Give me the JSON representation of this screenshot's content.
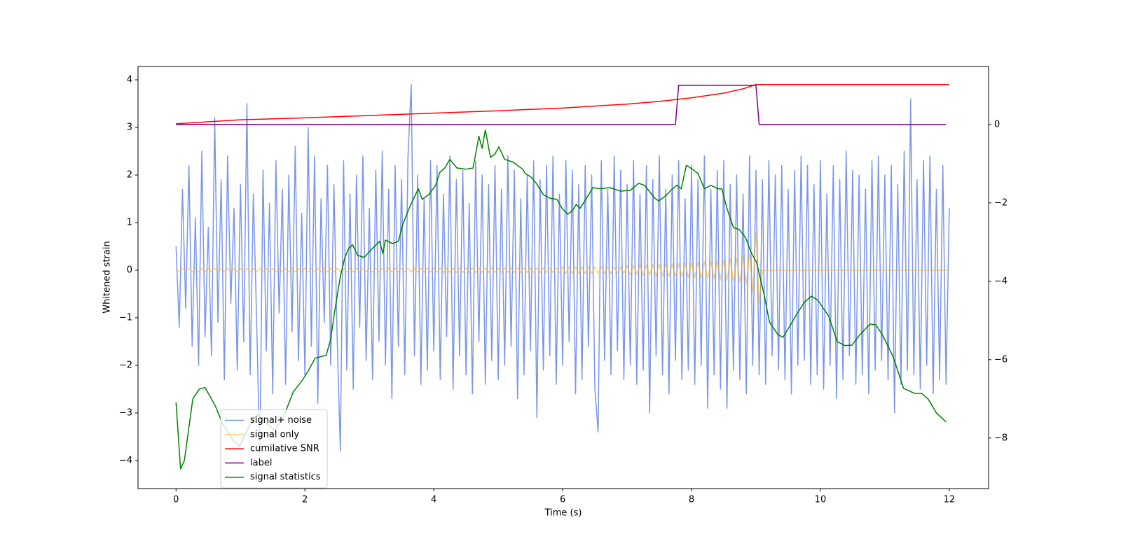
{
  "chart_data": {
    "type": "line",
    "xlabel": "Time (s)",
    "ylabel": "Whitened strain",
    "xlim": [
      -0.59,
      12.61
    ],
    "ylim": [
      -4.59,
      4.28
    ],
    "y2lim": [
      -9.29,
      1.48
    ],
    "xticks": [
      0,
      2,
      4,
      6,
      8,
      10,
      12
    ],
    "yticks": [
      {
        "value": -4,
        "label": "−4"
      },
      {
        "value": -3,
        "label": "−3"
      },
      {
        "value": -2,
        "label": "−2"
      },
      {
        "value": -1,
        "label": "−1"
      },
      0,
      1,
      2,
      3,
      4
    ],
    "y2ticks": [
      {
        "value": -8,
        "label": "−8"
      },
      {
        "value": -6,
        "label": "−6"
      },
      {
        "value": -4,
        "label": "−4"
      },
      {
        "value": -2,
        "label": "−2"
      },
      0
    ],
    "legend": "lower left",
    "x": [
      0,
      0.05,
      0.1,
      0.15,
      0.2,
      0.25,
      0.3,
      0.35,
      0.4,
      0.45,
      0.5,
      0.55,
      0.6,
      0.65,
      0.7,
      0.75,
      0.8,
      0.85,
      0.9,
      0.95,
      1,
      1.05,
      1.1,
      1.15,
      1.2,
      1.25,
      1.3,
      1.35,
      1.4,
      1.45,
      1.5,
      1.55,
      1.6,
      1.65,
      1.7,
      1.75,
      1.8,
      1.85,
      1.9,
      1.95,
      2,
      2.05,
      2.1,
      2.15,
      2.2,
      2.25,
      2.3,
      2.35,
      2.4,
      2.45,
      2.5,
      2.55,
      2.6,
      2.65,
      2.7,
      2.75,
      2.8,
      2.85,
      2.9,
      2.95,
      3,
      3.05,
      3.1,
      3.15,
      3.2,
      3.25,
      3.3,
      3.35,
      3.4,
      3.45,
      3.5,
      3.55,
      3.6,
      3.65,
      3.7,
      3.75,
      3.8,
      3.85,
      3.9,
      3.95,
      4,
      4.05,
      4.1,
      4.15,
      4.2,
      4.25,
      4.3,
      4.35,
      4.4,
      4.45,
      4.5,
      4.55,
      4.6,
      4.65,
      4.7,
      4.75,
      4.8,
      4.85,
      4.9,
      4.95,
      5,
      5.05,
      5.1,
      5.15,
      5.2,
      5.25,
      5.3,
      5.35,
      5.4,
      5.45,
      5.5,
      5.55,
      5.6,
      5.65,
      5.7,
      5.75,
      5.8,
      5.85,
      5.9,
      5.95,
      6,
      6.05,
      6.1,
      6.15,
      6.2,
      6.25,
      6.3,
      6.35,
      6.4,
      6.45,
      6.5,
      6.55,
      6.6,
      6.65,
      6.7,
      6.75,
      6.8,
      6.85,
      6.9,
      6.95,
      7,
      7.05,
      7.1,
      7.15,
      7.2,
      7.25,
      7.3,
      7.35,
      7.4,
      7.45,
      7.5,
      7.55,
      7.6,
      7.65,
      7.7,
      7.75,
      7.8,
      7.85,
      7.9,
      7.95,
      8,
      8.05,
      8.1,
      8.15,
      8.2,
      8.25,
      8.3,
      8.35,
      8.4,
      8.45,
      8.5,
      8.55,
      8.6,
      8.65,
      8.7,
      8.75,
      8.8,
      8.85,
      8.9,
      8.95,
      9,
      9.05,
      9.1,
      9.15,
      9.2,
      9.25,
      9.3,
      9.35,
      9.4,
      9.45,
      9.5,
      9.55,
      9.6,
      9.65,
      9.7,
      9.75,
      9.8,
      9.85,
      9.9,
      9.95,
      10,
      10.05,
      10.1,
      10.15,
      10.2,
      10.25,
      10.3,
      10.35,
      10.4,
      10.45,
      10.5,
      10.55,
      10.6,
      10.65,
      10.7,
      10.75,
      10.8,
      10.85,
      10.9,
      10.95,
      11,
      11.05,
      11.1,
      11.15,
      11.2,
      11.25,
      11.3,
      11.35,
      11.4,
      11.45,
      11.5,
      11.55,
      11.6,
      11.65,
      11.7,
      11.75,
      11.8,
      11.85,
      11.9,
      11.95,
      12
    ],
    "series": [
      {
        "name": "signal+ noise",
        "color": "#4169e1",
        "values": [
          0.5,
          -1.2,
          1.7,
          -0.8,
          2.2,
          -1.6,
          1.1,
          -2.0,
          2.5,
          -1.4,
          0.9,
          -1.8,
          3.2,
          -1.1,
          1.9,
          -2.3,
          2.4,
          -0.7,
          1.3,
          -2.1,
          1.8,
          -1.5,
          3.5,
          -2.2,
          1.6,
          -1.0,
          -4.0,
          2.1,
          -1.7,
          1.4,
          -2.6,
          2.3,
          -0.9,
          1.7,
          -2.4,
          2.0,
          -1.3,
          2.6,
          -1.9,
          1.2,
          -2.2,
          3.0,
          -1.6,
          2.4,
          -2.8,
          1.5,
          -1.1,
          2.2,
          -2.0,
          1.8,
          -1.4,
          -3.8,
          2.3,
          -2.1,
          1.6,
          -2.5,
          2.0,
          -1.2,
          2.4,
          -1.9,
          1.3,
          -2.3,
          2.1,
          -1.5,
          2.5,
          -2.0,
          1.7,
          -2.7,
          2.2,
          -1.6,
          1.9,
          -2.2,
          2.4,
          3.9,
          -1.8,
          2.0,
          -2.4,
          1.5,
          -2.1,
          2.3,
          -1.7,
          2.2,
          -2.3,
          1.6,
          -1.4,
          2.4,
          -2.5,
          1.9,
          -1.8,
          2.1,
          -2.2,
          1.4,
          -2.6,
          2.3,
          -1.5,
          2.0,
          -2.4,
          1.8,
          -1.9,
          2.2,
          -2.3,
          1.7,
          -2.0,
          2.4,
          -1.6,
          2.1,
          -2.7,
          1.5,
          -2.2,
          2.0,
          -1.7,
          2.3,
          -3.1,
          1.9,
          -2.1,
          2.2,
          -1.8,
          2.4,
          -2.4,
          1.6,
          -2.0,
          2.3,
          -1.5,
          2.1,
          -2.6,
          1.8,
          -2.3,
          2.2,
          -1.6,
          2.0,
          -2.5,
          -3.4,
          2.3,
          -1.9,
          1.7,
          -2.2,
          2.4,
          -1.7,
          2.1,
          -2.3,
          1.8,
          -2.0,
          2.3,
          -2.4,
          1.6,
          -2.1,
          2.2,
          -3.0,
          1.9,
          -1.8,
          2.4,
          -2.2,
          1.7,
          -2.6,
          2.0,
          -1.9,
          2.3,
          -2.3,
          1.5,
          -2.1,
          2.2,
          -2.4,
          1.9,
          -2.0,
          2.4,
          -2.9,
          1.7,
          -2.2,
          2.1,
          -2.5,
          2.3,
          -2.9,
          1.8,
          -2.1,
          2.0,
          -2.3,
          1.6,
          -2.6,
          2.4,
          -2.0,
          2.1,
          -2.2,
          1.9,
          -2.4,
          2.3,
          -1.8,
          2.0,
          -2.1,
          2.2,
          -2.3,
          1.7,
          -2.6,
          2.1,
          -2.0,
          2.4,
          -1.9,
          2.2,
          -2.4,
          1.8,
          -2.2,
          2.3,
          -2.5,
          1.6,
          -2.0,
          2.2,
          -2.7,
          1.9,
          -2.3,
          2.5,
          -1.8,
          2.1,
          -2.4,
          2.0,
          -2.2,
          1.7,
          -2.6,
          2.3,
          -2.1,
          2.4,
          -1.9,
          2.0,
          -2.3,
          2.2,
          -3.0,
          1.8,
          -2.4,
          2.5,
          -2.1,
          3.6,
          -2.2,
          1.9,
          -2.5,
          2.3,
          -2.0,
          2.4,
          -2.6,
          1.7,
          -2.3,
          2.2,
          -2.4,
          1.3
        ]
      },
      {
        "name": "signal only",
        "color": "#ffa500",
        "values": [
          0.04,
          -0.04,
          0.04,
          -0.04,
          0.04,
          -0.04,
          0.04,
          -0.04,
          0.04,
          -0.04,
          0.04,
          -0.04,
          0.04,
          -0.04,
          0.04,
          -0.04,
          0.04,
          -0.04,
          0.04,
          -0.04,
          0.04,
          -0.04,
          0.04,
          -0.04,
          0.04,
          -0.04,
          0.04,
          -0.04,
          0.04,
          -0.04,
          0.04,
          -0.04,
          0.04,
          -0.04,
          0.04,
          -0.04,
          0.04,
          -0.04,
          0.04,
          -0.04,
          0.04,
          -0.04,
          0.04,
          -0.04,
          0.04,
          -0.04,
          0.04,
          -0.04,
          0.04,
          -0.04,
          0.04,
          -0.04,
          0.04,
          -0.04,
          0.04,
          -0.04,
          0.04,
          -0.04,
          0.04,
          -0.04,
          0.04,
          -0.04,
          0.04,
          -0.04,
          0.04,
          -0.04,
          0.04,
          -0.04,
          0.04,
          -0.04,
          0.04,
          -0.04,
          0.04,
          -0.04,
          0.04,
          -0.04,
          0.04,
          -0.04,
          0.04,
          -0.04,
          0.05,
          -0.05,
          0.05,
          -0.05,
          0.05,
          -0.05,
          0.05,
          -0.05,
          0.05,
          -0.05,
          0.05,
          -0.05,
          0.05,
          -0.05,
          0.05,
          -0.05,
          0.05,
          -0.05,
          0.05,
          -0.05,
          0.05,
          -0.05,
          0.05,
          -0.05,
          0.05,
          -0.05,
          0.05,
          -0.05,
          0.05,
          -0.05,
          0.05,
          -0.05,
          0.05,
          -0.05,
          0.05,
          -0.05,
          0.05,
          -0.05,
          0.05,
          -0.05,
          0.07,
          -0.07,
          0.07,
          -0.07,
          0.07,
          -0.07,
          0.07,
          -0.07,
          0.07,
          -0.07,
          0.07,
          -0.07,
          0.07,
          -0.07,
          0.07,
          -0.07,
          0.07,
          -0.07,
          0.07,
          -0.07,
          0.1,
          -0.1,
          0.1,
          -0.1,
          0.11,
          -0.11,
          0.11,
          -0.11,
          0.12,
          -0.12,
          0.12,
          -0.12,
          0.13,
          -0.13,
          0.13,
          -0.13,
          0.14,
          -0.14,
          0.15,
          -0.15,
          0.16,
          -0.16,
          0.17,
          -0.17,
          0.18,
          -0.18,
          0.19,
          -0.19,
          0.2,
          -0.2,
          0.22,
          -0.22,
          0.24,
          -0.24,
          0.26,
          -0.26,
          0.3,
          -0.3,
          0.36,
          -0.45,
          0.8,
          -0.7,
          0,
          0,
          0,
          0,
          0,
          0,
          0,
          0,
          0,
          0,
          0,
          0,
          0,
          0,
          0,
          0,
          0,
          0,
          0,
          0,
          0,
          0,
          0,
          0,
          0,
          0,
          0,
          0,
          0,
          0,
          0,
          0,
          0,
          0,
          0,
          0,
          0,
          0,
          0,
          0,
          0,
          0,
          0,
          0,
          0,
          0,
          0,
          0,
          0,
          0,
          0,
          0,
          0,
          0,
          0,
          0,
          0,
          0,
          0
        ]
      },
      {
        "name": "cumilative SNR",
        "color": "#ff0000",
        "axis": "y2",
        "x": [
          0,
          1,
          2,
          3,
          4,
          5,
          6,
          7,
          7.5,
          8,
          8.5,
          8.8,
          9,
          12
        ],
        "values": [
          0.02,
          0.12,
          0.17,
          0.23,
          0.29,
          0.35,
          0.42,
          0.52,
          0.59,
          0.68,
          0.8,
          0.91,
          1.02,
          1.02
        ]
      },
      {
        "name": "label",
        "color": "#800080",
        "axis": "y2",
        "x": [
          0,
          7.75,
          7.8,
          9,
          9.05,
          11.95
        ],
        "values": [
          0,
          0,
          1,
          1,
          0,
          0
        ]
      },
      {
        "name": "signal statistics",
        "color": "#008000",
        "axis": "y2",
        "x": [
          0,
          0.07,
          0.13,
          0.26,
          0.36,
          0.45,
          0.61,
          0.72,
          0.89,
          0.99,
          1.13,
          1.27,
          1.4,
          1.53,
          1.67,
          1.82,
          1.95,
          2.05,
          2.16,
          2.33,
          2.4,
          2.47,
          2.55,
          2.62,
          2.68,
          2.74,
          2.82,
          2.92,
          3.05,
          3.16,
          3.21,
          3.25,
          3.36,
          3.45,
          3.52,
          3.63,
          3.76,
          3.82,
          3.92,
          4.03,
          4.09,
          4.17,
          4.25,
          4.36,
          4.5,
          4.61,
          4.7,
          4.75,
          4.8,
          4.88,
          4.95,
          5.01,
          5.1,
          5.23,
          5.32,
          5.38,
          5.42,
          5.51,
          5.59,
          5.7,
          5.8,
          5.91,
          5.99,
          6.08,
          6.16,
          6.21,
          6.27,
          6.36,
          6.47,
          6.58,
          6.73,
          6.9,
          7.05,
          7.18,
          7.27,
          7.43,
          7.49,
          7.6,
          7.68,
          7.77,
          7.84,
          7.92,
          8.03,
          8.1,
          8.2,
          8.3,
          8.41,
          8.47,
          8.55,
          8.65,
          8.74,
          8.84,
          8.92,
          9.01,
          9.12,
          9.21,
          9.34,
          9.42,
          9.53,
          9.64,
          9.75,
          9.86,
          9.96,
          10.04,
          10.13,
          10.26,
          10.38,
          10.49,
          10.6,
          10.77,
          10.86,
          10.97,
          11.13,
          11.29,
          11.46,
          11.57,
          11.67,
          11.8,
          11.95
        ],
        "values": [
          -7.09,
          -8.79,
          -8.57,
          -7.0,
          -6.75,
          -6.71,
          -7.18,
          -7.63,
          -8.07,
          -8.2,
          -7.71,
          -7.39,
          -7.63,
          -7.8,
          -7.45,
          -6.82,
          -6.55,
          -6.29,
          -5.96,
          -5.89,
          -5.48,
          -4.68,
          -3.88,
          -3.39,
          -3.16,
          -3.07,
          -3.34,
          -3.39,
          -3.16,
          -2.98,
          -3.29,
          -2.95,
          -3.04,
          -2.98,
          -2.54,
          -2.09,
          -1.64,
          -1.91,
          -1.79,
          -1.55,
          -1.23,
          -1.11,
          -0.89,
          -1.11,
          -1.14,
          -1.11,
          -0.3,
          -0.61,
          -0.14,
          -0.84,
          -0.75,
          -0.57,
          -0.89,
          -0.96,
          -1.07,
          -1.14,
          -1.25,
          -1.34,
          -1.5,
          -1.79,
          -1.88,
          -1.91,
          -2.14,
          -2.29,
          -2.18,
          -2.04,
          -2.14,
          -1.91,
          -1.61,
          -1.64,
          -1.61,
          -1.7,
          -1.68,
          -1.5,
          -1.55,
          -1.88,
          -1.95,
          -1.82,
          -1.68,
          -1.55,
          -1.64,
          -1.04,
          -1.16,
          -1.25,
          -1.64,
          -1.55,
          -1.64,
          -1.64,
          -2.14,
          -2.63,
          -2.68,
          -2.89,
          -3.25,
          -3.52,
          -4.29,
          -5.04,
          -5.36,
          -5.43,
          -5.13,
          -4.82,
          -4.54,
          -4.38,
          -4.48,
          -4.68,
          -4.89,
          -5.54,
          -5.64,
          -5.63,
          -5.39,
          -5.09,
          -5.11,
          -5.39,
          -5.93,
          -6.73,
          -6.86,
          -6.86,
          -7.0,
          -7.36,
          -7.59
        ]
      }
    ]
  }
}
